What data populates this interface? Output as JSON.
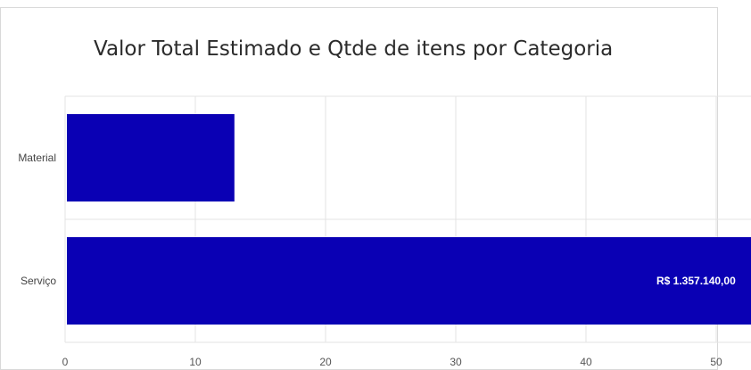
{
  "chart_data": {
    "type": "bar",
    "orientation": "horizontal",
    "title": "Valor Total Estimado e Qtde de itens por Categoria",
    "xlabel": "",
    "ylabel": "",
    "categories": [
      "Material",
      "Serviço"
    ],
    "values": [
      13,
      53
    ],
    "data_labels": [
      "",
      "R$ 1.357.140,00"
    ],
    "xlim": [
      0,
      53
    ],
    "xticks": [
      0,
      10,
      20,
      30,
      40,
      50
    ],
    "grid": true,
    "colors": {
      "bar": "#0a00b4",
      "grid": "#e3e3e3"
    }
  }
}
